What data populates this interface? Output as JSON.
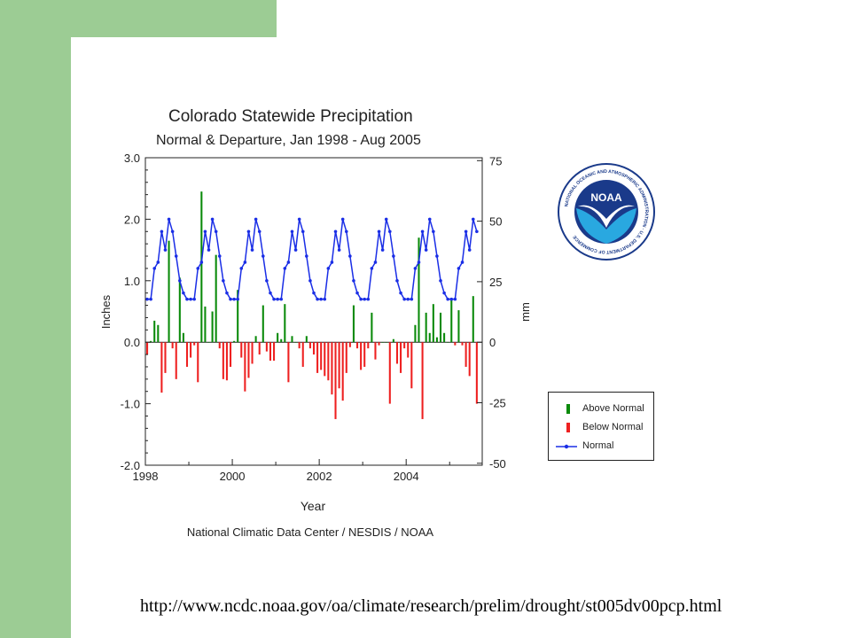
{
  "slide": {
    "colors": {
      "band": "#9ccc94",
      "above": "#0a8a0a",
      "below": "#ee2020",
      "normal": "#1a2ee6"
    },
    "url": "http://www.ncdc.noaa.gov/oa/climate/research/prelim/drought/st005dv00pcp.html",
    "logo_text": "NOAA",
    "logo_ring_text": "NATIONAL OCEANIC AND ATMOSPHERIC ADMINISTRATION · U.S. DEPARTMENT OF COMMERCE"
  },
  "chart_data": {
    "type": "bar",
    "title": "Colorado Statewide Precipitation",
    "subtitle": "Normal & Departure, Jan 1998 - Aug 2005",
    "xlabel": "Year",
    "ylabel": "Inches",
    "ylabel_right": "mm",
    "credit": "National Climatic Data Center / NESDIS / NOAA",
    "xlim": [
      1998,
      2005.75
    ],
    "ylim": [
      -2.0,
      3.0
    ],
    "ylim_right_mm": [
      -50.8,
      76.2
    ],
    "x_ticks": [
      1998,
      2000,
      2002,
      2004
    ],
    "y_ticks_left": [
      "3.0",
      "2.0",
      "1.0",
      "0.0",
      "-1.0",
      "-2.0"
    ],
    "y_ticks_right": [
      "75",
      "50",
      "25",
      "0",
      "-25",
      "-50"
    ],
    "legend": [
      "Above Normal",
      "Below Normal",
      "Normal"
    ],
    "normal_monthly_in": [
      0.7,
      0.7,
      1.2,
      1.3,
      1.8,
      1.5,
      2.0,
      1.8,
      1.4,
      1.0,
      0.8,
      0.7
    ],
    "departure_in": [
      -0.2,
      0.02,
      0.35,
      0.28,
      -0.82,
      -0.5,
      1.65,
      -0.1,
      -0.6,
      1.05,
      0.15,
      -0.4,
      -0.25,
      -0.05,
      -0.65,
      2.45,
      0.58,
      0.0,
      0.5,
      1.42,
      -0.1,
      -0.6,
      -0.62,
      -0.4,
      0.02,
      0.85,
      -0.25,
      -0.8,
      -0.58,
      -0.35,
      0.1,
      -0.2,
      0.6,
      -0.15,
      -0.3,
      -0.3,
      0.15,
      0.05,
      0.62,
      -0.65,
      0.1,
      0.0,
      -0.1,
      -0.4,
      0.1,
      -0.1,
      -0.2,
      -0.5,
      -0.45,
      -0.55,
      -0.62,
      -0.85,
      -1.25,
      -0.75,
      -0.95,
      -0.5,
      -0.08,
      0.6,
      -0.1,
      -0.45,
      -0.4,
      -0.1,
      0.48,
      -0.28,
      -0.05,
      0.0,
      0.0,
      -1.0,
      0.05,
      -0.35,
      -0.5,
      -0.1,
      -0.25,
      -0.75,
      0.28,
      1.7,
      -1.25,
      0.48,
      0.15,
      0.62,
      0.08,
      0.48,
      0.15,
      0.0,
      0.72,
      -0.05,
      0.52,
      -0.05,
      -0.4,
      -0.55,
      0.75,
      -1.0
    ]
  }
}
